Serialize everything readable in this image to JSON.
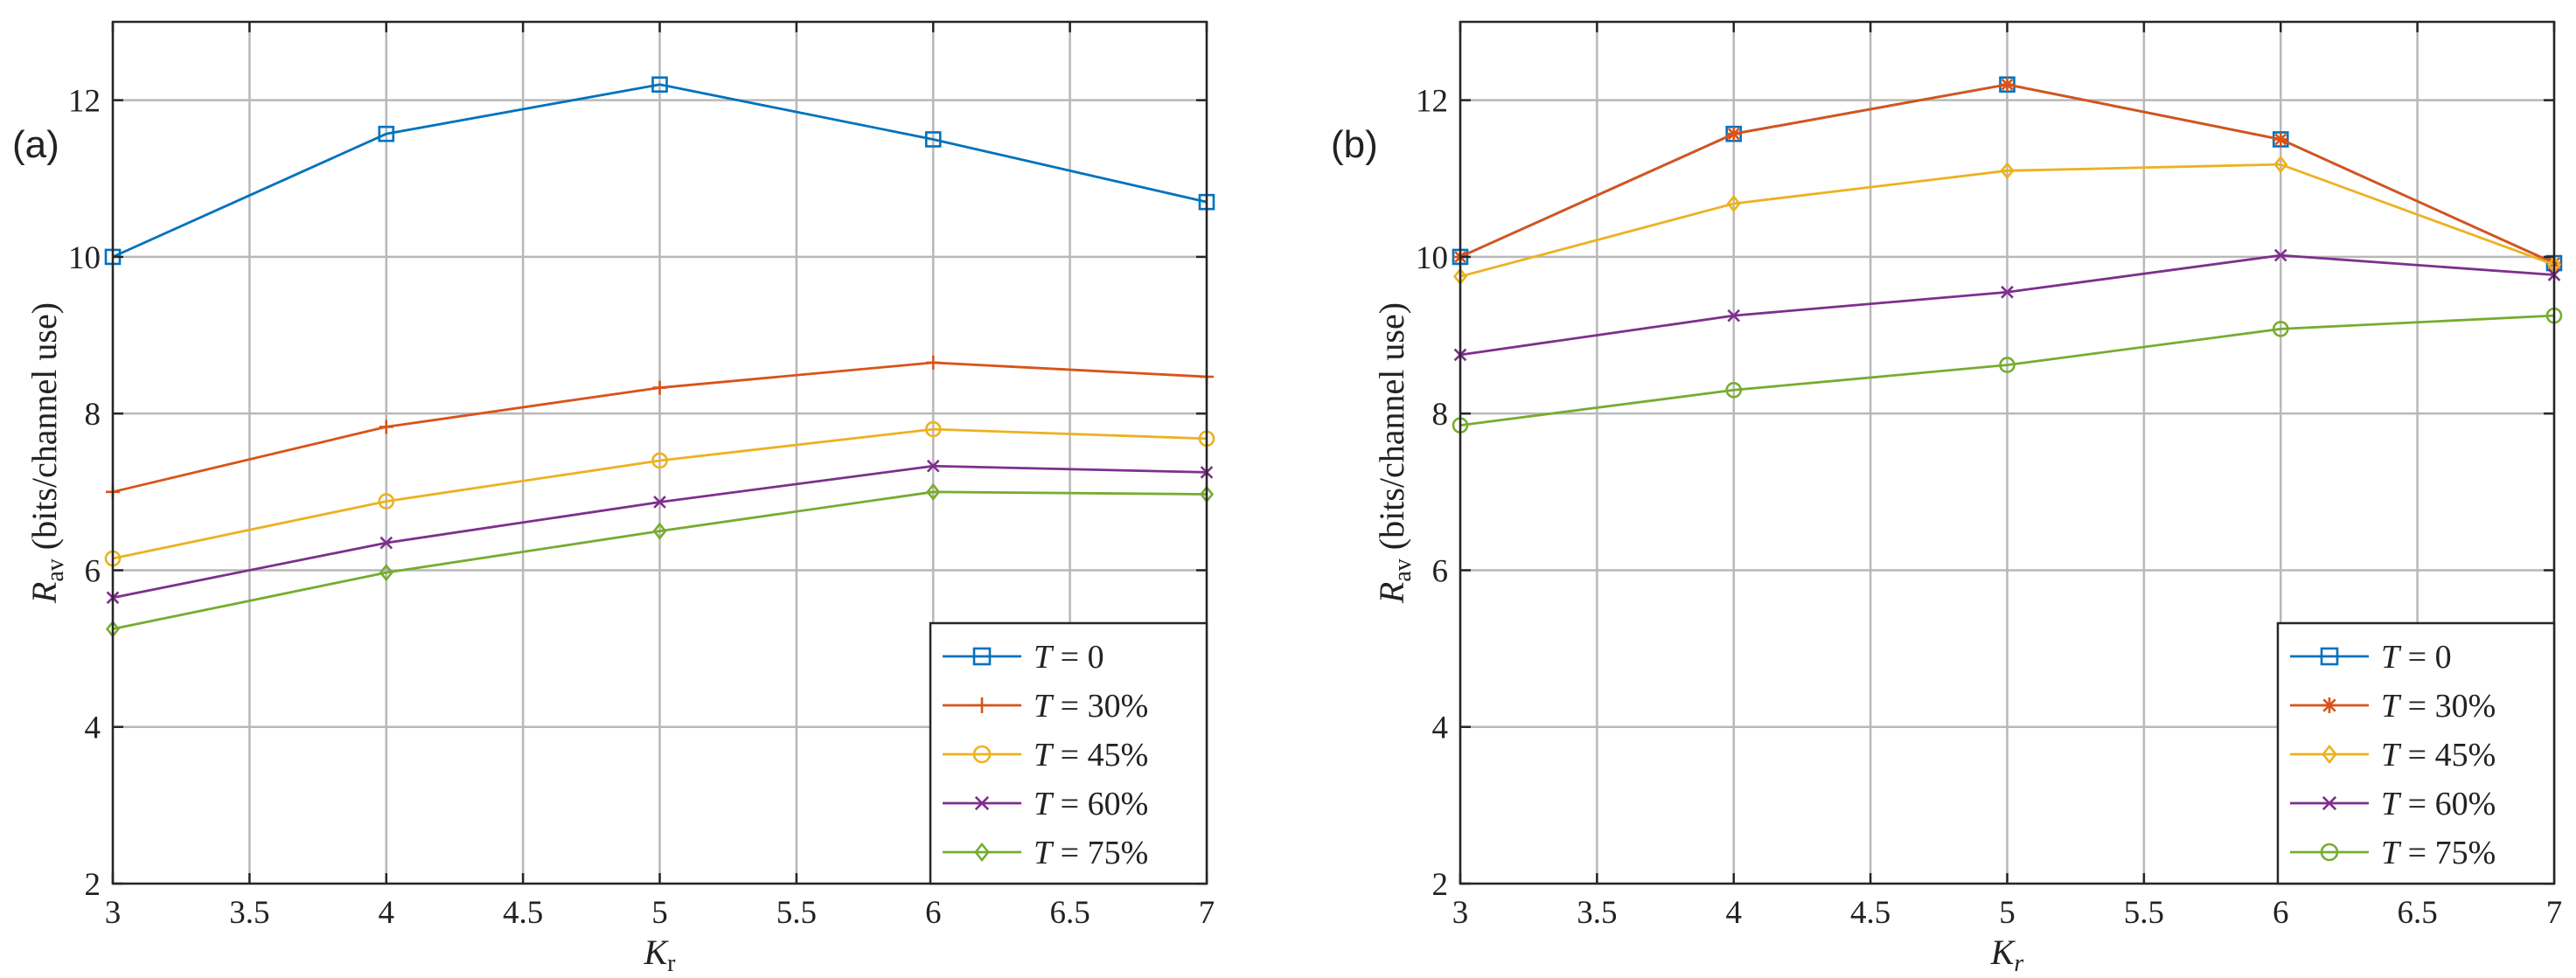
{
  "chart_data": [
    {
      "type": "line",
      "panel_label": "(a)",
      "xlabel": "K",
      "xlabel_sub": "r",
      "ylabel": "R",
      "ylabel_sub": "av",
      "ylabel_rest": " (bits/channel use)",
      "xlim": [
        3,
        7
      ],
      "ylim": [
        2,
        13
      ],
      "xticks": [
        3,
        3.5,
        4,
        4.5,
        5,
        5.5,
        6,
        6.5,
        7
      ],
      "xtick_labels": [
        "3",
        "3.5",
        "4",
        "4.5",
        "5",
        "5.5",
        "6",
        "6.5",
        "7"
      ],
      "yticks": [
        2,
        4,
        6,
        8,
        10,
        12
      ],
      "ytick_labels": [
        "2",
        "4",
        "6",
        "8",
        "10",
        "12"
      ],
      "grid": true,
      "legend_position": "bottom-right",
      "x": [
        3,
        4,
        5,
        6,
        7
      ],
      "series": [
        {
          "name": "T = 0",
          "legend_italic": "T",
          "legend_rest": " = 0",
          "color": "#0072BD",
          "marker": "square",
          "values": [
            10.0,
            11.57,
            12.2,
            11.5,
            10.7
          ]
        },
        {
          "name": "T = 30%",
          "legend_italic": "T",
          "legend_rest": " = 30%",
          "color": "#D95319",
          "marker": "plus",
          "values": [
            7.0,
            7.83,
            8.33,
            8.65,
            8.47
          ]
        },
        {
          "name": "T = 45%",
          "legend_italic": "T",
          "legend_rest": " = 45%",
          "color": "#EDB120",
          "marker": "circle",
          "values": [
            6.15,
            6.88,
            7.4,
            7.8,
            7.68
          ]
        },
        {
          "name": "T = 60%",
          "legend_italic": "T",
          "legend_rest": " = 60%",
          "color": "#7E2F8E",
          "marker": "x",
          "values": [
            5.65,
            6.35,
            6.87,
            7.33,
            7.25
          ]
        },
        {
          "name": "T = 75%",
          "legend_italic": "T",
          "legend_rest": " = 75%",
          "color": "#77AC30",
          "marker": "diamond",
          "values": [
            5.25,
            5.97,
            6.5,
            7.0,
            6.97
          ]
        }
      ]
    },
    {
      "type": "line",
      "panel_label": "(b)",
      "xlabel": "K",
      "xlabel_sub": "r",
      "ylabel": "R",
      "ylabel_sub": "av",
      "ylabel_rest": " (bits/channel use)",
      "xlim": [
        3,
        7
      ],
      "ylim": [
        2,
        13
      ],
      "xticks": [
        3,
        3.5,
        4,
        4.5,
        5,
        5.5,
        6,
        6.5,
        7
      ],
      "xtick_labels": [
        "3",
        "3.5",
        "4",
        "4.5",
        "5",
        "5.5",
        "6",
        "6.5",
        "7"
      ],
      "yticks": [
        2,
        4,
        6,
        8,
        10,
        12
      ],
      "ytick_labels": [
        "2",
        "4",
        "6",
        "8",
        "10",
        "12"
      ],
      "grid": true,
      "legend_position": "bottom-right",
      "x": [
        3,
        4,
        5,
        6,
        7
      ],
      "series": [
        {
          "name": "T = 0",
          "legend_italic": "T",
          "legend_rest": " = 0",
          "color": "#0072BD",
          "marker": "square",
          "values": [
            10.0,
            11.57,
            12.2,
            11.5,
            9.92
          ]
        },
        {
          "name": "T = 30%",
          "legend_italic": "T",
          "legend_rest": " = 30%",
          "color": "#D95319",
          "marker": "asterisk",
          "values": [
            10.0,
            11.57,
            12.2,
            11.5,
            9.92
          ]
        },
        {
          "name": "T = 45%",
          "legend_italic": "T",
          "legend_rest": " = 45%",
          "color": "#EDB120",
          "marker": "diamond",
          "values": [
            9.75,
            10.68,
            11.1,
            11.18,
            9.9
          ]
        },
        {
          "name": "T = 60%",
          "legend_italic": "T",
          "legend_rest": " = 60%",
          "color": "#7E2F8E",
          "marker": "x",
          "values": [
            8.75,
            9.25,
            9.55,
            10.02,
            9.77
          ]
        },
        {
          "name": "T = 75%",
          "legend_italic": "T",
          "legend_rest": " = 75%",
          "color": "#77AC30",
          "marker": "circle",
          "values": [
            7.85,
            8.3,
            8.62,
            9.08,
            9.25
          ]
        }
      ]
    }
  ]
}
